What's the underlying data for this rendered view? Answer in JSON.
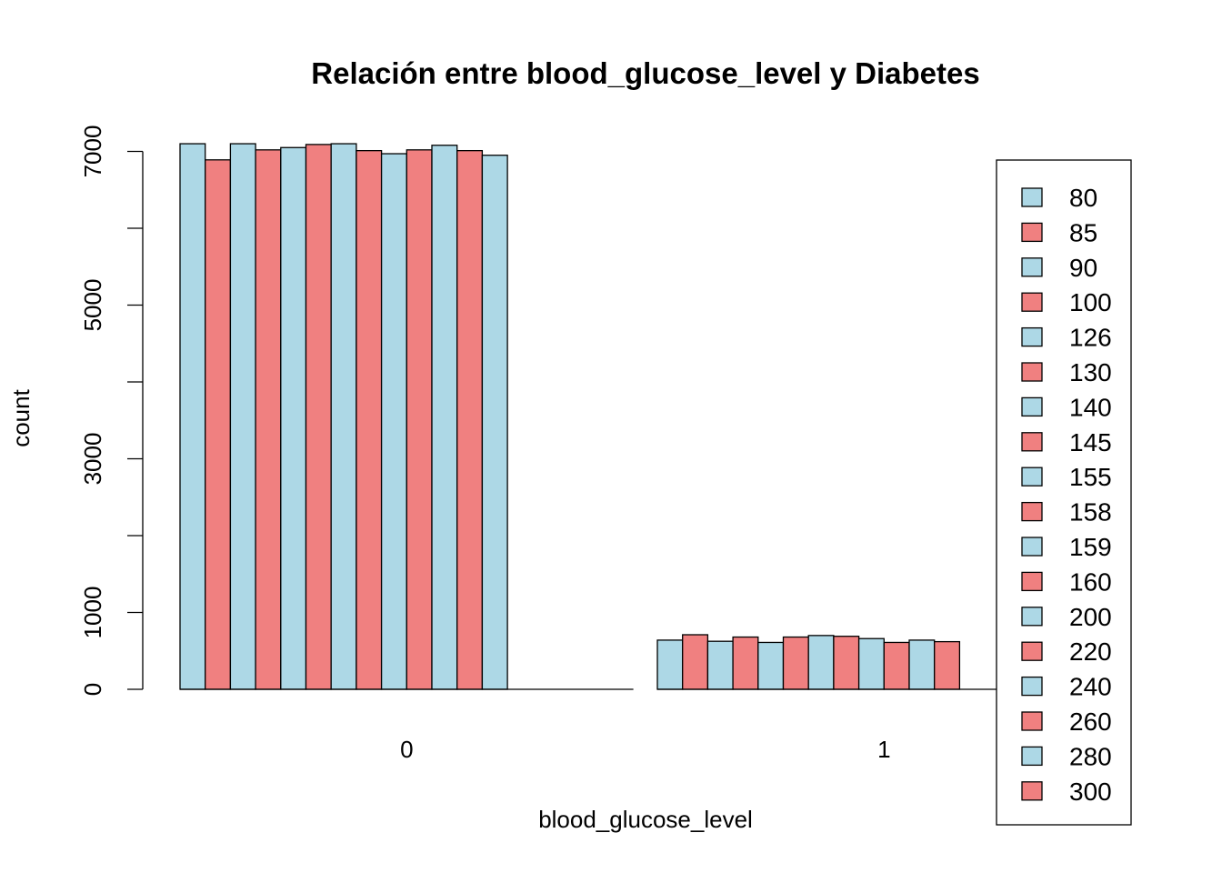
{
  "chart_data": {
    "type": "bar",
    "title": "Relación entre blood_glucose_level y Diabetes",
    "xlabel": "blood_glucose_level",
    "ylabel": "count",
    "ylim": [
      0,
      7200
    ],
    "yticks": [
      0,
      1000,
      3000,
      5000,
      7000
    ],
    "ytick_labels": [
      "0",
      "1000",
      "3000",
      "5000",
      "7000"
    ],
    "categories": [
      "0",
      "1"
    ],
    "colors": [
      "#ADD8E6",
      "#F08080"
    ],
    "grid": false,
    "legend_position": "right",
    "series": [
      {
        "name": "80",
        "values": [
          7100,
          640
        ]
      },
      {
        "name": "85",
        "values": [
          6890,
          710
        ]
      },
      {
        "name": "90",
        "values": [
          7100,
          625
        ]
      },
      {
        "name": "100",
        "values": [
          7020,
          680
        ]
      },
      {
        "name": "126",
        "values": [
          7050,
          610
        ]
      },
      {
        "name": "130",
        "values": [
          7090,
          680
        ]
      },
      {
        "name": "140",
        "values": [
          7100,
          700
        ]
      },
      {
        "name": "145",
        "values": [
          7010,
          690
        ]
      },
      {
        "name": "155",
        "values": [
          6970,
          660
        ]
      },
      {
        "name": "158",
        "values": [
          7020,
          610
        ]
      },
      {
        "name": "159",
        "values": [
          7080,
          640
        ]
      },
      {
        "name": "160",
        "values": [
          7010,
          620
        ]
      },
      {
        "name": "200",
        "values": [
          6950,
          0
        ]
      },
      {
        "name": "220",
        "values": [
          0,
          0
        ]
      },
      {
        "name": "240",
        "values": [
          0,
          0
        ]
      },
      {
        "name": "260",
        "values": [
          0,
          0
        ]
      },
      {
        "name": "280",
        "values": [
          0,
          0
        ]
      },
      {
        "name": "300",
        "values": [
          0,
          0
        ]
      }
    ]
  }
}
